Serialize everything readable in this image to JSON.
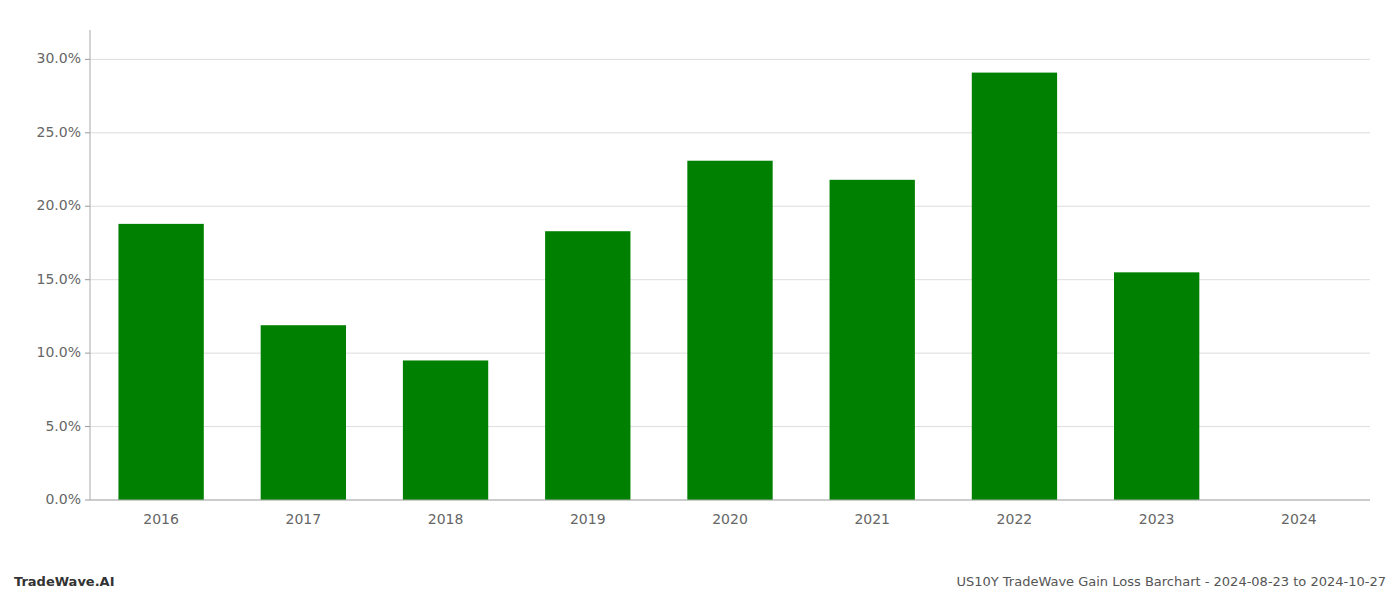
{
  "chart_data": {
    "type": "bar",
    "title": "US10Y TradeWave Gain Loss Barchart - 2024-08-23 to 2024-10-27",
    "annotations": [
      "TradeWave.AI"
    ],
    "categories": [
      "2016",
      "2017",
      "2018",
      "2019",
      "2020",
      "2021",
      "2022",
      "2023",
      "2024"
    ],
    "values": [
      0.188,
      0.119,
      0.095,
      0.183,
      0.231,
      0.218,
      0.291,
      0.155,
      0.0
    ],
    "color": "#008000",
    "ylim": [
      0,
      0.32
    ],
    "yticks": [
      {
        "value": 0.0,
        "label": "0.0%"
      },
      {
        "value": 0.05,
        "label": "5.0%"
      },
      {
        "value": 0.1,
        "label": "10.0%"
      },
      {
        "value": 0.15,
        "label": "15.0%"
      },
      {
        "value": 0.2,
        "label": "20.0%"
      },
      {
        "value": 0.25,
        "label": "25.0%"
      },
      {
        "value": 0.3,
        "label": "30.0%"
      }
    ],
    "grid": true
  }
}
